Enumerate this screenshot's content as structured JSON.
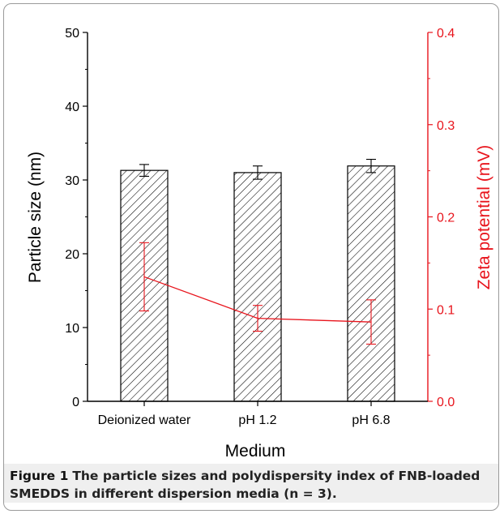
{
  "figure": {
    "caption_label": "Figure 1",
    "caption_text": "The particle sizes and polydispersity index of FNB-loaded SMEDDS in different dispersion media (n = 3)."
  },
  "chart_data": {
    "type": "bar",
    "title": "",
    "xlabel": "Medium",
    "ylabel": "Particle size (nm)",
    "y2label": "Zeta potential (mV)",
    "categories": [
      "Deionized water",
      "pH 1.2",
      "pH 6.8"
    ],
    "ylim": [
      0,
      50
    ],
    "y2lim": [
      0.0,
      0.4
    ],
    "yticks": [
      "0",
      "10",
      "20",
      "30",
      "40",
      "50"
    ],
    "y2ticks": [
      "0.0",
      "0.1",
      "0.2",
      "0.3",
      "0.4"
    ],
    "grid": false,
    "series": [
      {
        "type": "bar",
        "axis": "left",
        "values": [
          31.3,
          31.0,
          31.9
        ],
        "errors": [
          0.8,
          0.9,
          0.9
        ],
        "color": "#000000",
        "pattern": "diagonal-hatch"
      },
      {
        "type": "line",
        "axis": "right",
        "values": [
          0.135,
          0.09,
          0.086
        ],
        "errors": [
          0.037,
          0.014,
          0.024
        ],
        "color": "#e8141c"
      }
    ]
  }
}
